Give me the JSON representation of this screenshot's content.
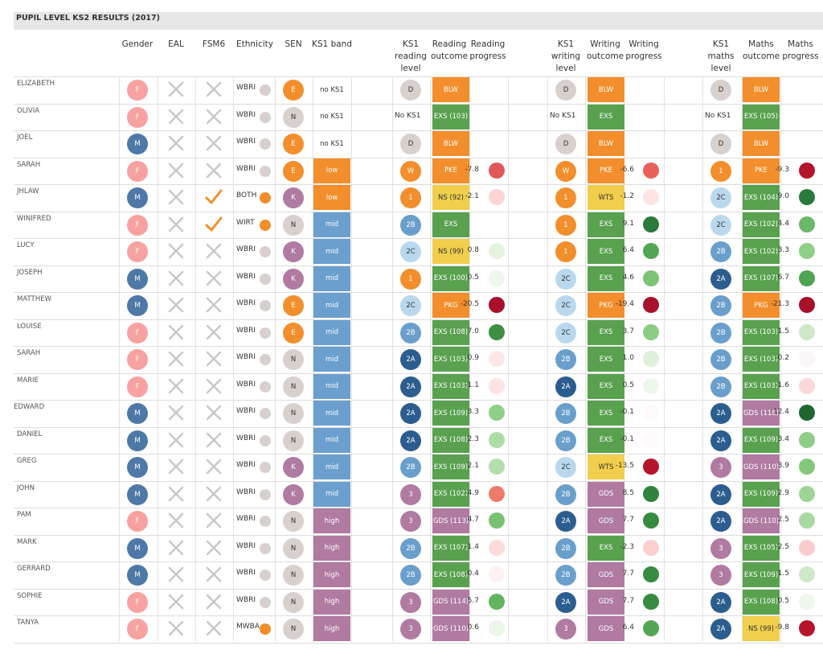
{
  "title": "PUPIL LEVEL KS2 RESULTS (2017)",
  "headers": {
    "gender": "Gender",
    "eal": "EAL",
    "fsm6": "FSM6",
    "ethnicity": "Ethnicity",
    "sen": "SEN",
    "ks1band": "KS1 band",
    "ks1_reading": [
      "KS1",
      "reading",
      "level"
    ],
    "reading_outcome": [
      "Reading",
      "outcome"
    ],
    "reading_progress": [
      "Reading",
      "progress"
    ],
    "ks1_writing": [
      "KS1",
      "writing",
      "level"
    ],
    "writing_outcome": [
      "Writing",
      "outcome"
    ],
    "writing_progress": [
      "Writing",
      "progress"
    ],
    "ks1_maths": [
      "KS1",
      "maths",
      "level"
    ],
    "maths_outcome": [
      "Maths",
      "outcome"
    ],
    "maths_progress": [
      "Maths",
      "progress"
    ]
  },
  "colors": {
    "female": "#f7a1a1",
    "male": "#4e79a7",
    "orange": "#f28e2b",
    "grey": "#d8d0cc",
    "purple": "#b07aa1",
    "blue_band": "#6b9fce",
    "purple_band": "#b07aa1",
    "green": "#59a14f",
    "yellow": "#f1ce4b",
    "lvl_2a": "#2c5d8f",
    "lvl_2b": "#6a9fcc",
    "lvl_2c": "#b9d8ee",
    "cross": "#c9c9c9",
    "tick": "#f28e2b"
  },
  "pupils": [
    {
      "name": "ELIZABETH",
      "gender": "F",
      "eal": false,
      "fsm6": false,
      "eth": "WBRI",
      "eth_dot": "grey",
      "sen": "E",
      "band": "no KS1",
      "r_lvl": "D",
      "r_out": "BLW",
      "r_out_c": "orange",
      "r_prog": "",
      "r_dot": "",
      "w_lvl": "D",
      "w_out": "BLW",
      "w_out_c": "orange",
      "w_prog": "",
      "w_dot": "",
      "m_lvl": "D",
      "m_out": "BLW",
      "m_out_c": "orange",
      "m_prog": "",
      "m_dot": ""
    },
    {
      "name": "OLIVIA",
      "gender": "F",
      "eal": false,
      "fsm6": false,
      "eth": "WBRI",
      "eth_dot": "grey",
      "sen": "N",
      "band": "no KS1",
      "r_lvl": "No KS1",
      "r_out": "EXS (103)",
      "r_out_c": "green",
      "r_prog": "",
      "r_dot": "",
      "w_lvl": "No KS1",
      "w_out": "EXS",
      "w_out_c": "green",
      "w_prog": "",
      "w_dot": "",
      "m_lvl": "No KS1",
      "m_out": "EXS (105)",
      "m_out_c": "green",
      "m_prog": "",
      "m_dot": ""
    },
    {
      "name": "JOEL",
      "gender": "M",
      "eal": false,
      "fsm6": false,
      "eth": "WBRI",
      "eth_dot": "grey",
      "sen": "E",
      "band": "no KS1",
      "r_lvl": "D",
      "r_out": "BLW",
      "r_out_c": "orange",
      "r_prog": "",
      "r_dot": "",
      "w_lvl": "D",
      "w_out": "BLW",
      "w_out_c": "orange",
      "w_prog": "",
      "w_dot": "",
      "m_lvl": "D",
      "m_out": "BLW",
      "m_out_c": "orange",
      "m_prog": "",
      "m_dot": ""
    },
    {
      "name": "SARAH",
      "gender": "F",
      "eal": false,
      "fsm6": false,
      "eth": "WBRI",
      "eth_dot": "grey",
      "sen": "E",
      "band": "low",
      "r_lvl": "W",
      "r_out": "PKE",
      "r_out_c": "orange",
      "r_prog": "-7.8",
      "r_dot": "#e15759",
      "w_lvl": "W",
      "w_out": "PKE",
      "w_out_c": "orange",
      "w_prog": "-6.6",
      "w_dot": "#e8605a",
      "m_lvl": "1",
      "m_out": "PKE",
      "m_out_c": "orange",
      "m_prog": "-9.3",
      "m_dot": "#b5152b"
    },
    {
      "name": "JHLAW",
      "gender": "M",
      "eal": false,
      "fsm6": true,
      "eth": "BOTH",
      "eth_dot": "orange",
      "sen": "K",
      "band": "low",
      "r_lvl": "1",
      "r_out": "NS (92)",
      "r_out_c": "yellow",
      "r_prog": "-2.1",
      "r_dot": "#fbd4d3",
      "w_lvl": "1",
      "w_out": "WTS",
      "w_out_c": "yellow",
      "w_prog": "-1.2",
      "w_dot": "#fde3e2",
      "m_lvl": "2C",
      "m_out": "EXS (104)",
      "m_out_c": "green",
      "m_prog": "9.0",
      "m_dot": "#2a7a3b"
    },
    {
      "name": "WINIFRED",
      "gender": "F",
      "eal": false,
      "fsm6": true,
      "eth": "WIRT",
      "eth_dot": "orange",
      "sen": "N",
      "band": "mid",
      "r_lvl": "2B",
      "r_out": "EXS",
      "r_out_c": "green",
      "r_prog": "",
      "r_dot": "",
      "w_lvl": "1",
      "w_out": "EXS",
      "w_out_c": "green",
      "w_prog": "9.1",
      "w_dot": "#2a7a3b",
      "m_lvl": "2C",
      "m_out": "EXS (102)",
      "m_out_c": "green",
      "m_prog": "4.4",
      "m_dot": "#6ab86a"
    },
    {
      "name": "LUCY",
      "gender": "F",
      "eal": false,
      "fsm6": false,
      "eth": "WBRI",
      "eth_dot": "grey",
      "sen": "K",
      "band": "mid",
      "r_lvl": "2C",
      "r_out": "NS (99)",
      "r_out_c": "yellow",
      "r_prog": "0.8",
      "r_dot": "#e4f3e0",
      "w_lvl": "1",
      "w_out": "EXS",
      "w_out_c": "green",
      "w_prog": "6.4",
      "w_dot": "#53a653",
      "m_lvl": "2B",
      "m_out": "EXS (102)",
      "m_out_c": "green",
      "m_prog": "3.3",
      "m_dot": "#8fcf87"
    },
    {
      "name": "JOSEPH",
      "gender": "M",
      "eal": false,
      "fsm6": false,
      "eth": "WBRI",
      "eth_dot": "grey",
      "sen": "K",
      "band": "mid",
      "r_lvl": "1",
      "r_out": "EXS (100)",
      "r_out_c": "green",
      "r_prog": "0.5",
      "r_dot": "#edf7ea",
      "w_lvl": "2C",
      "w_out": "EXS",
      "w_out_c": "green",
      "w_prog": "4.6",
      "w_dot": "#7cc375",
      "m_lvl": "2A",
      "m_out": "EXS (107)",
      "m_out_c": "green",
      "m_prog": "6.7",
      "m_dot": "#4fa351"
    },
    {
      "name": "MATTHEW",
      "gender": "M",
      "eal": false,
      "fsm6": false,
      "eth": "WBRI",
      "eth_dot": "grey",
      "sen": "E",
      "band": "mid",
      "r_lvl": "2C",
      "r_out": "PKG",
      "r_out_c": "orange",
      "r_prog": "-20.5",
      "r_dot": "#a8102c",
      "w_lvl": "2C",
      "w_out": "PKG",
      "w_out_c": "orange",
      "w_prog": "-19.4",
      "w_dot": "#a8102c",
      "m_lvl": "2B",
      "m_out": "PKG",
      "m_out_c": "orange",
      "m_prog": "-21.3",
      "m_dot": "#a8102c"
    },
    {
      "name": "LOUISE",
      "gender": "F",
      "eal": false,
      "fsm6": false,
      "eth": "WBRI",
      "eth_dot": "grey",
      "sen": "E",
      "band": "mid",
      "r_lvl": "2B",
      "r_out": "EXS (108)",
      "r_out_c": "green",
      "r_prog": "7.0",
      "r_dot": "#3d8f43",
      "w_lvl": "2C",
      "w_out": "EXS",
      "w_out_c": "green",
      "w_prog": "3.7",
      "w_dot": "#8ccd85",
      "m_lvl": "2B",
      "m_out": "EXS (103)",
      "m_out_c": "green",
      "m_prog": "1.5",
      "m_dot": "#cfe9c8"
    },
    {
      "name": "SARAH",
      "gender": "F",
      "eal": false,
      "fsm6": false,
      "eth": "WBRI",
      "eth_dot": "grey",
      "sen": "N",
      "band": "mid",
      "r_lvl": "2A",
      "r_out": "EXS (103)",
      "r_out_c": "green",
      "r_prog": "-0.9",
      "r_dot": "#fde7e6",
      "w_lvl": "2B",
      "w_out": "EXS",
      "w_out_c": "green",
      "w_prog": "1.0",
      "w_dot": "#dff0da",
      "m_lvl": "2B",
      "m_out": "EXS (103)",
      "m_out_c": "green",
      "m_prog": "-0.2",
      "m_dot": "#fdf6f6"
    },
    {
      "name": "MARIE",
      "gender": "F",
      "eal": false,
      "fsm6": false,
      "eth": "WBRI",
      "eth_dot": "grey",
      "sen": "N",
      "band": "mid",
      "r_lvl": "2A",
      "r_out": "EXS (103)",
      "r_out_c": "green",
      "r_prog": "-1.1",
      "r_dot": "#fde2e1",
      "w_lvl": "2A",
      "w_out": "EXS",
      "w_out_c": "green",
      "w_prog": "0.5",
      "w_dot": "#edf7ea",
      "m_lvl": "2B",
      "m_out": "EXS (103)",
      "m_out_c": "green",
      "m_prog": "-1.6",
      "m_dot": "#fbd8d7"
    },
    {
      "name": "EDWARD",
      "gender": "M",
      "eal": false,
      "fsm6": false,
      "eth": "WBRI",
      "eth_dot": "grey",
      "sen": "N",
      "band": "mid",
      "r_lvl": "2A",
      "r_out": "EXS (109)",
      "r_out_c": "green",
      "r_prog": "3.3",
      "r_dot": "#8fcf87",
      "w_lvl": "2B",
      "w_out": "EXS",
      "w_out_c": "green",
      "w_prog": "-0.1",
      "w_dot": "#fefafa",
      "m_lvl": "2A",
      "m_out": "GDS (118)",
      "m_out_c": "purple",
      "m_prog": "12.4",
      "m_dot": "#1f6630"
    },
    {
      "name": "DANIEL",
      "gender": "M",
      "eal": false,
      "fsm6": false,
      "eth": "WBRI",
      "eth_dot": "grey",
      "sen": "N",
      "band": "mid",
      "r_lvl": "2A",
      "r_out": "EXS (108)",
      "r_out_c": "green",
      "r_prog": "2.3",
      "r_dot": "#aedca7",
      "w_lvl": "2B",
      "w_out": "EXS",
      "w_out_c": "green",
      "w_prog": "-0.1",
      "w_dot": "#fefafa",
      "m_lvl": "2A",
      "m_out": "EXS (109)",
      "m_out_c": "green",
      "m_prog": "3.4",
      "m_dot": "#8dcd85"
    },
    {
      "name": "GREG",
      "gender": "M",
      "eal": false,
      "fsm6": false,
      "eth": "WBRI",
      "eth_dot": "grey",
      "sen": "K",
      "band": "mid",
      "r_lvl": "2B",
      "r_out": "EXS (109)",
      "r_out_c": "green",
      "r_prog": "2.1",
      "r_dot": "#b3dfac",
      "w_lvl": "2C",
      "w_out": "WTS",
      "w_out_c": "yellow",
      "w_prog": "-13.5",
      "w_dot": "#b5152b",
      "m_lvl": "3",
      "m_out": "GDS (110)",
      "m_out_c": "purple",
      "m_prog": "3.9",
      "m_dot": "#84c87c"
    },
    {
      "name": "JOHN",
      "gender": "M",
      "eal": false,
      "fsm6": false,
      "eth": "WBRI",
      "eth_dot": "grey",
      "sen": "K",
      "band": "mid",
      "r_lvl": "3",
      "r_out": "EXS (102)",
      "r_out_c": "green",
      "r_prog": "-4.9",
      "r_dot": "#ee7a6c",
      "w_lvl": "2B",
      "w_out": "GDS",
      "w_out_c": "purple",
      "w_prog": "8.5",
      "w_dot": "#2f833d",
      "m_lvl": "2A",
      "m_out": "EXS (109)",
      "m_out_c": "green",
      "m_prog": "2.9",
      "m_dot": "#9ed596"
    },
    {
      "name": "PAM",
      "gender": "F",
      "eal": false,
      "fsm6": false,
      "eth": "WBRI",
      "eth_dot": "grey",
      "sen": "N",
      "band": "high",
      "r_lvl": "3",
      "r_out": "GDS (113)",
      "r_out_c": "purple",
      "r_prog": "4.7",
      "r_dot": "#79c172",
      "w_lvl": "2A",
      "w_out": "GDS",
      "w_out_c": "purple",
      "w_prog": "7.7",
      "w_dot": "#378b40",
      "m_lvl": "2A",
      "m_out": "GDS (110)",
      "m_out_c": "purple",
      "m_prog": "2.5",
      "m_dot": "#a8d9a1"
    },
    {
      "name": "MARK",
      "gender": "M",
      "eal": false,
      "fsm6": false,
      "eth": "WBRI",
      "eth_dot": "grey",
      "sen": "N",
      "band": "high",
      "r_lvl": "2B",
      "r_out": "EXS (107)",
      "r_out_c": "green",
      "r_prog": "-1.4",
      "r_dot": "#fcdcdb",
      "w_lvl": "2B",
      "w_out": "EXS",
      "w_out_c": "green",
      "w_prog": "-2.3",
      "w_dot": "#fad0cf",
      "m_lvl": "3",
      "m_out": "EXS (105)",
      "m_out_c": "green",
      "m_prog": "-2.5",
      "m_dot": "#facdcc"
    },
    {
      "name": "GERRARD",
      "gender": "M",
      "eal": false,
      "fsm6": false,
      "eth": "WBRI",
      "eth_dot": "grey",
      "sen": "N",
      "band": "high",
      "r_lvl": "2B",
      "r_out": "EXS (108)",
      "r_out_c": "green",
      "r_prog": "-0.4",
      "r_dot": "#fdf2f1",
      "w_lvl": "2B",
      "w_out": "GDS",
      "w_out_c": "purple",
      "w_prog": "7.7",
      "w_dot": "#378b40",
      "m_lvl": "3",
      "m_out": "EXS (109)",
      "m_out_c": "green",
      "m_prog": "1.5",
      "m_dot": "#cfe9c8"
    },
    {
      "name": "SOPHIE",
      "gender": "F",
      "eal": false,
      "fsm6": false,
      "eth": "WBRI",
      "eth_dot": "grey",
      "sen": "N",
      "band": "high",
      "r_lvl": "3",
      "r_out": "GDS (114)",
      "r_out_c": "purple",
      "r_prog": "5.7",
      "r_dot": "#63b45f",
      "w_lvl": "2A",
      "w_out": "GDS",
      "w_out_c": "purple",
      "w_prog": "7.7",
      "w_dot": "#378b40",
      "m_lvl": "2A",
      "m_out": "EXS (108)",
      "m_out_c": "green",
      "m_prog": "0.5",
      "m_dot": "#edf7ea"
    },
    {
      "name": "TANYA",
      "gender": "F",
      "eal": false,
      "fsm6": false,
      "eth": "MWBA",
      "eth_dot": "orange",
      "sen": "N",
      "band": "high",
      "r_lvl": "3",
      "r_out": "GDS (110)",
      "r_out_c": "purple",
      "r_prog": "0.6",
      "r_dot": "#eaf6e7",
      "w_lvl": "3",
      "w_out": "GDS",
      "w_out_c": "purple",
      "w_prog": "6.4",
      "w_dot": "#53a653",
      "m_lvl": "2A",
      "m_out": "NS (99)",
      "m_out_c": "yellow",
      "m_prog": "-9.8",
      "m_dot": "#b5152b"
    }
  ]
}
